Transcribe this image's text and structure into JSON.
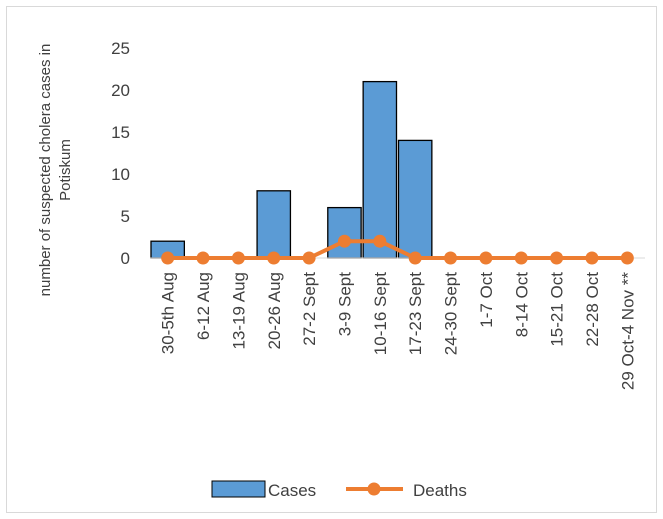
{
  "chart_data": {
    "type": "bar",
    "categories": [
      "30-5th Aug",
      "6-12 Aug",
      "13-19 Aug",
      "20-26 Aug",
      "27-2 Sept",
      "3-9 Sept",
      "10-16 Sept",
      "17-23 Sept",
      "24-30 Sept",
      "1-7 Oct",
      "8-14 Oct",
      "15-21 Oct",
      "22-28 Oct",
      "29 Oct-4 Nov **"
    ],
    "series": [
      {
        "name": "Cases",
        "type": "bar",
        "color": "#5b9bd5",
        "values": [
          2,
          0,
          0,
          8,
          0,
          6,
          21,
          14,
          0,
          0,
          0,
          0,
          0,
          0
        ]
      },
      {
        "name": "Deaths",
        "type": "line",
        "color": "#ed7d31",
        "values": [
          0,
          0,
          0,
          0,
          0,
          2,
          2,
          0,
          0,
          0,
          0,
          0,
          0,
          0
        ]
      }
    ],
    "ylabel_lines": [
      "number of suspected cholera cases in",
      "Potiskum"
    ],
    "ylim": [
      0,
      25
    ],
    "yticks": [
      0,
      5,
      10,
      15,
      20,
      25
    ],
    "grid": false,
    "legend_position": "bottom"
  }
}
